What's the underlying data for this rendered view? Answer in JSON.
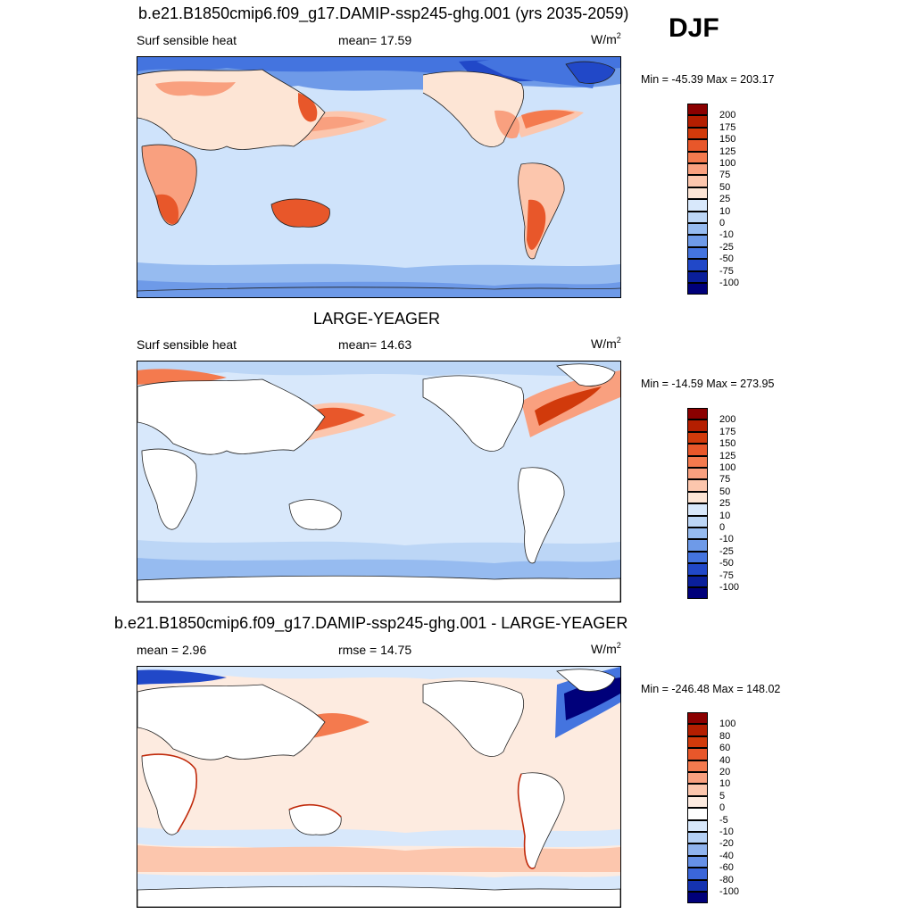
{
  "season": "DJF",
  "panels": [
    {
      "title": "b.e21.B1850cmip6.f09_g17.DAMIP-ssp245-ghg.001 (yrs 2035-2059)",
      "left_label": "Surf sensible heat",
      "center_label": "mean=  17.59",
      "units": "W/m",
      "units_sup": "2",
      "minmax": "Min = -45.39 Max = 203.17",
      "colorbar": {
        "labels": [
          "200",
          "175",
          "150",
          "125",
          "100",
          "75",
          "50",
          "25",
          "10",
          "0",
          "-10",
          "-25",
          "-50",
          "-75",
          "-100"
        ],
        "colors": [
          "#8b0000",
          "#b41e00",
          "#d13a0b",
          "#e8572a",
          "#f47a4e",
          "#f9a07f",
          "#fcc6ad",
          "#fde5d5",
          "#d8e8fb",
          "#bcd6f6",
          "#96bbf0",
          "#6e9ae8",
          "#4474df",
          "#2148c8",
          "#0a1f9b",
          "#00007a"
        ]
      }
    },
    {
      "title": "LARGE-YEAGER",
      "left_label": "Surf sensible heat",
      "center_label": "mean=  14.63",
      "units": "W/m",
      "units_sup": "2",
      "minmax": "Min = -14.59 Max = 273.95",
      "colorbar": {
        "labels": [
          "200",
          "175",
          "150",
          "125",
          "100",
          "75",
          "50",
          "25",
          "10",
          "0",
          "-10",
          "-25",
          "-50",
          "-75",
          "-100"
        ],
        "colors": [
          "#8b0000",
          "#b41e00",
          "#d13a0b",
          "#e8572a",
          "#f47a4e",
          "#f9a07f",
          "#fcc6ad",
          "#fde5d5",
          "#d8e8fb",
          "#bcd6f6",
          "#96bbf0",
          "#6e9ae8",
          "#4474df",
          "#2148c8",
          "#0a1f9b",
          "#00007a"
        ]
      }
    },
    {
      "title": "b.e21.B1850cmip6.f09_g17.DAMIP-ssp245-ghg.001 - LARGE-YEAGER",
      "left_label": "mean =   2.96",
      "center_label": "rmse =  14.75",
      "units": "W/m",
      "units_sup": "2",
      "minmax": "Min = -246.48 Max = 148.02",
      "colorbar": {
        "labels": [
          "100",
          "80",
          "60",
          "40",
          "20",
          "10",
          "5",
          "0",
          "-5",
          "-10",
          "-20",
          "-40",
          "-60",
          "-80",
          "-100"
        ],
        "colors": [
          "#8b0000",
          "#b41e00",
          "#d13a0b",
          "#e8572a",
          "#f47a4e",
          "#f9a07f",
          "#fcc6ad",
          "#fdebe0",
          "#ffffff",
          "#d8e8fb",
          "#b4d0f5",
          "#8fb3ee",
          "#6690e6",
          "#3b66d9",
          "#1533b0",
          "#00007a"
        ]
      }
    }
  ]
}
